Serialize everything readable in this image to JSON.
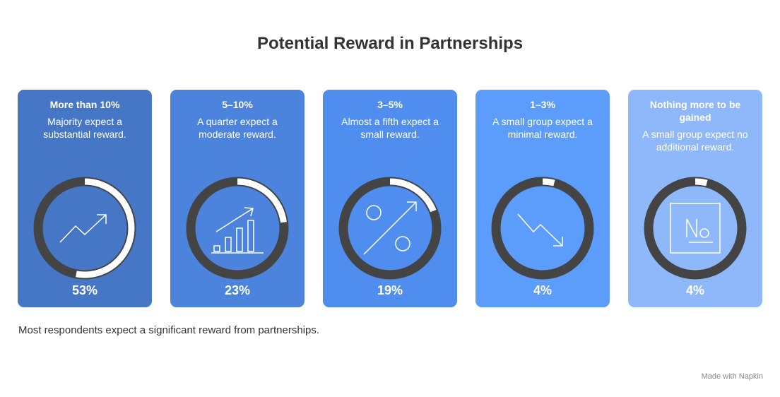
{
  "title": "Potential Reward in Partnerships",
  "cards": [
    {
      "label": "More than 10%",
      "description": "Majority expect a substantial reward.",
      "value": 53,
      "value_label": "53%",
      "color": "#4676c6"
    },
    {
      "label": "5–10%",
      "description": "A quarter expect a moderate reward.",
      "value": 23,
      "value_label": "23%",
      "color": "#4c83dc"
    },
    {
      "label": "3–5%",
      "description": "Almost a fifth expect a small reward.",
      "value": 19,
      "value_label": "19%",
      "color": "#4f8def"
    },
    {
      "label": "1–3%",
      "description": "A small group expect a minimal reward.",
      "value": 4,
      "value_label": "4%",
      "color": "#5c9cfa"
    },
    {
      "label": "Nothing more to be gained",
      "description": "A small group expect no additional reward.",
      "value": 4,
      "value_label": "4%",
      "color": "#8fb8fb"
    }
  ],
  "footnote": "Most respondents expect a significant reward from partnerships.",
  "watermark": "Made with Napkin"
}
